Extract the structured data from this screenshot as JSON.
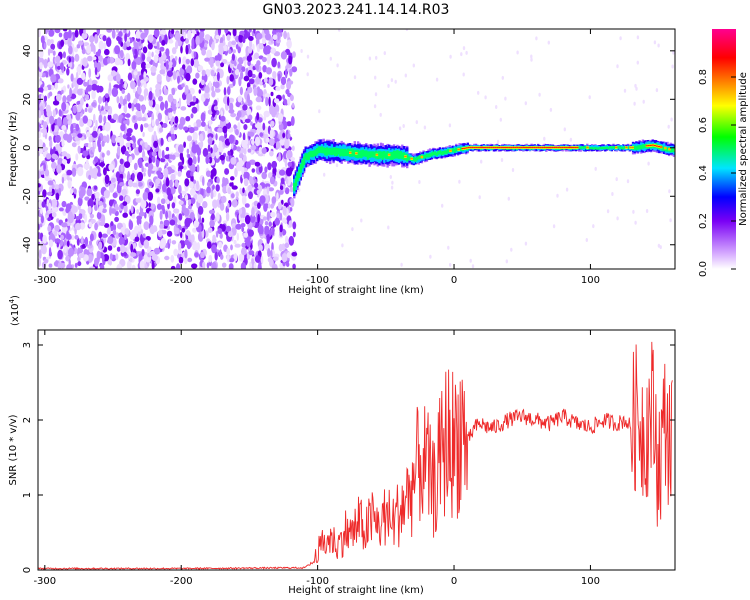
{
  "chart_data": [
    {
      "type": "heatmap",
      "title": "GN03.2023.241.14.14.R03",
      "xlabel": "Height of straight line (km)",
      "ylabel": "Frequency (Hz)",
      "xlim": [
        -305,
        162
      ],
      "ylim": [
        -50,
        49
      ],
      "x_ticks": [
        -300,
        -200,
        -100,
        0,
        100
      ],
      "x_tick_labels": [
        "-300",
        "-200",
        "-100",
        "0",
        "100"
      ],
      "y_ticks": [
        -40,
        -20,
        0,
        20,
        40
      ],
      "y_tick_labels": [
        "-40",
        "-20",
        "0",
        "20",
        "40"
      ],
      "noise_region_x": [
        -305,
        -117
      ],
      "signal_center_track": [
        {
          "x": -118,
          "y": -16
        },
        {
          "x": -110,
          "y": -4
        },
        {
          "x": -100,
          "y": -1
        },
        {
          "x": -80,
          "y": -2
        },
        {
          "x": -60,
          "y": -3
        },
        {
          "x": -40,
          "y": -3
        },
        {
          "x": -30,
          "y": -5
        },
        {
          "x": -20,
          "y": -3
        },
        {
          "x": -10,
          "y": -2
        },
        {
          "x": 0,
          "y": -1
        },
        {
          "x": 10,
          "y": 0
        },
        {
          "x": 50,
          "y": 0
        },
        {
          "x": 100,
          "y": 0
        },
        {
          "x": 130,
          "y": 0
        },
        {
          "x": 145,
          "y": 1
        },
        {
          "x": 160,
          "y": -1
        }
      ],
      "colorbar": {
        "label": "Normalized spectral amplitude",
        "range": [
          0,
          1
        ],
        "ticks": [
          0.0,
          0.2,
          0.4,
          0.6,
          0.8
        ],
        "tick_labels": [
          "0.0",
          "0.2",
          "0.4",
          "0.6",
          "0.8"
        ],
        "colors": [
          "#ffffff",
          "#d9b0ff",
          "#7a00f5",
          "#0000ff",
          "#00e5ff",
          "#00ff00",
          "#ffff00",
          "#ff8000",
          "#ff0000",
          "#ff0090"
        ]
      }
    },
    {
      "type": "line",
      "xlabel": "Height of straight line (km)",
      "ylabel": "SNR (10 * v/v)",
      "y_multiplier_label": "(x10",
      "y_multiplier_exponent": "4",
      "y_multiplier_suffix": ")",
      "xlim": [
        -305,
        162
      ],
      "ylim": [
        0,
        3.2
      ],
      "x_ticks": [
        -300,
        -200,
        -100,
        0,
        100
      ],
      "x_tick_labels": [
        "-300",
        "-200",
        "-100",
        "0",
        "100"
      ],
      "y_ticks": [
        0,
        1,
        2,
        3
      ],
      "y_tick_labels": [
        "0",
        "1",
        "2",
        "3"
      ],
      "series": [
        {
          "color": "#ee2a2a",
          "x": [
            -305,
            -200,
            -110,
            -103,
            -100,
            -95,
            -90,
            -85,
            -80,
            -75,
            -70,
            -65,
            -60,
            -55,
            -50,
            -45,
            -40,
            -35,
            -30,
            -25,
            -20,
            -15,
            -10,
            -5,
            0,
            5,
            10,
            15,
            20,
            25,
            30,
            40,
            50,
            60,
            70,
            80,
            90,
            100,
            110,
            120,
            125,
            130,
            135,
            140,
            145,
            150,
            155,
            160
          ],
          "y": [
            0.02,
            0.02,
            0.03,
            0.1,
            0.25,
            0.35,
            0.4,
            0.3,
            0.5,
            0.45,
            0.6,
            0.5,
            0.65,
            0.55,
            0.7,
            0.6,
            0.75,
            0.9,
            1.1,
            1.4,
            1.3,
            1.0,
            1.4,
            1.7,
            1.6,
            1.8,
            1.7,
            1.9,
            1.95,
            1.9,
            1.9,
            2.0,
            2.05,
            2.0,
            1.95,
            2.05,
            1.95,
            1.9,
            2.0,
            1.95,
            2.0,
            1.9,
            2.1,
            1.8,
            2.2,
            1.4,
            2.0,
            1.6
          ]
        }
      ]
    }
  ]
}
